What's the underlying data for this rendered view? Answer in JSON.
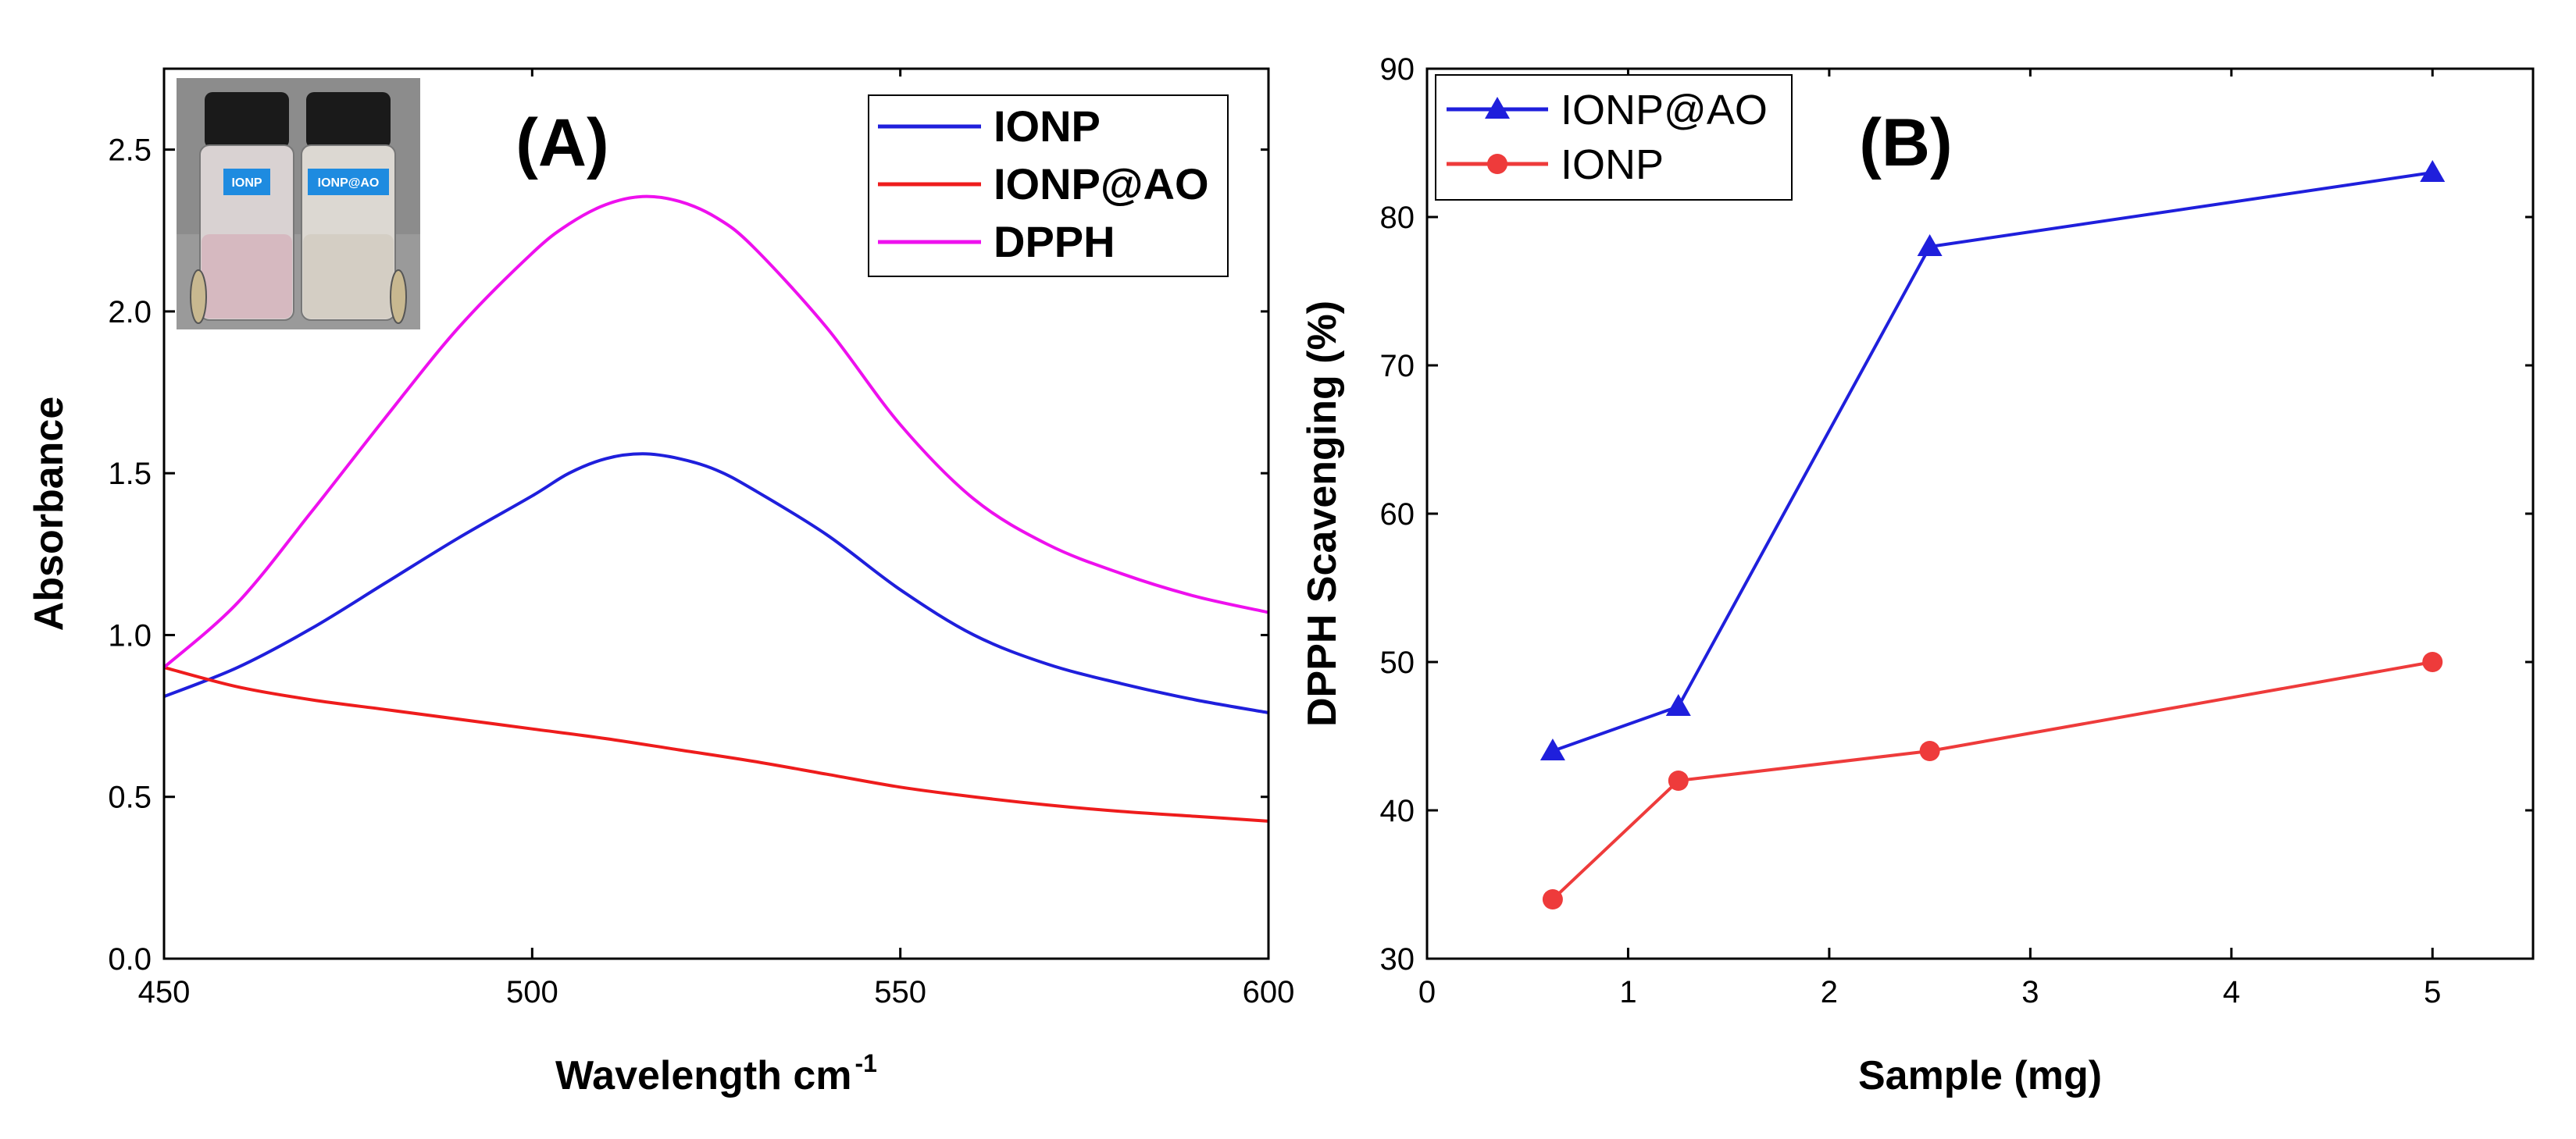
{
  "chart_data": [
    {
      "type": "line",
      "panel_label": "(A)",
      "xlabel": "Wavelength cm",
      "xlabel_sup": "-1",
      "ylabel": "Absorbance",
      "xlim": [
        450,
        600
      ],
      "ylim": [
        0,
        2.75
      ],
      "x_ticks": [
        "450",
        "500",
        "550",
        "600"
      ],
      "y_ticks": [
        "0.0",
        "0.5",
        "1.0",
        "1.5",
        "2.0",
        "2.5"
      ],
      "legend_position": "top-right",
      "inset_image": {
        "vial_labels": [
          "IONP",
          "IONP@AO"
        ]
      },
      "series": [
        {
          "name": "IONP",
          "color": "#1f1fdc",
          "x": [
            450,
            460,
            470,
            480,
            490,
            500,
            505,
            510,
            515,
            520,
            525,
            530,
            540,
            550,
            560,
            570,
            580,
            590,
            600
          ],
          "y": [
            0.81,
            0.9,
            1.02,
            1.16,
            1.3,
            1.43,
            1.5,
            1.545,
            1.56,
            1.545,
            1.51,
            1.45,
            1.31,
            1.14,
            1.0,
            0.91,
            0.85,
            0.8,
            0.76
          ]
        },
        {
          "name": "IONP@AO",
          "color": "#ee1c1c",
          "x": [
            450,
            460,
            470,
            480,
            490,
            500,
            510,
            520,
            530,
            540,
            550,
            560,
            570,
            580,
            590,
            600
          ],
          "y": [
            0.9,
            0.84,
            0.8,
            0.77,
            0.74,
            0.71,
            0.68,
            0.645,
            0.61,
            0.57,
            0.53,
            0.5,
            0.475,
            0.455,
            0.44,
            0.425
          ]
        },
        {
          "name": "DPPH",
          "color": "#ee10ee",
          "x": [
            450,
            460,
            470,
            480,
            490,
            500,
            505,
            510,
            515,
            520,
            525,
            530,
            540,
            550,
            560,
            570,
            580,
            590,
            600
          ],
          "y": [
            0.9,
            1.1,
            1.38,
            1.67,
            1.95,
            2.18,
            2.27,
            2.33,
            2.355,
            2.34,
            2.29,
            2.2,
            1.95,
            1.65,
            1.42,
            1.28,
            1.19,
            1.12,
            1.07
          ]
        }
      ]
    },
    {
      "type": "line",
      "panel_label": "(B)",
      "xlabel": "Sample (mg)",
      "ylabel": "DPPH Scavenging (%)",
      "xlim": [
        0,
        5.5
      ],
      "ylim": [
        30,
        90
      ],
      "x_ticks": [
        "0",
        "1",
        "2",
        "3",
        "4",
        "5"
      ],
      "y_ticks": [
        "30",
        "40",
        "50",
        "60",
        "70",
        "80",
        "90"
      ],
      "legend_position": "top-left",
      "series": [
        {
          "name": "IONP@AO",
          "color": "#1f1fdc",
          "marker": "triangle",
          "x": [
            0.625,
            1.25,
            2.5,
            5
          ],
          "y": [
            44,
            47,
            78,
            83
          ]
        },
        {
          "name": "IONP",
          "color": "#ee3b3b",
          "marker": "circle",
          "x": [
            0.625,
            1.25,
            2.5,
            5
          ],
          "y": [
            34,
            42,
            44,
            50
          ]
        }
      ]
    }
  ]
}
